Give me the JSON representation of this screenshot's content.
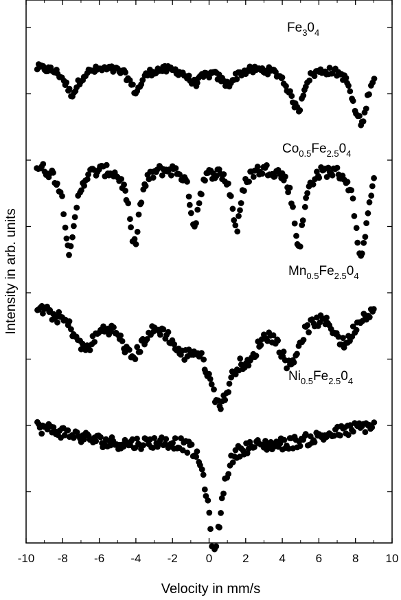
{
  "chart_data": {
    "type": "scatter",
    "xlabel": "Velocity in mm/s",
    "ylabel": "Intensity in arb. units",
    "xlim": [
      -10,
      10
    ],
    "x_ticks": [
      "-10",
      "-8",
      "-6",
      "-4",
      "-2",
      "0",
      "2",
      "4",
      "6",
      "8",
      "10"
    ],
    "y_tick_labels_shown": false,
    "marker_color": "#000000",
    "series": [
      {
        "label_parts": [
          [
            "Fe",
            ""
          ],
          [
            "3",
            "sub"
          ],
          [
            "0",
            ""
          ],
          [
            "4",
            "sub"
          ]
        ],
        "envelope": {
          "baseline": 0.92,
          "lines": [
            {
              "center": -7.5,
              "depth": 0.5,
              "width": 0.45
            },
            {
              "center": -4.0,
              "depth": 0.45,
              "width": 0.4
            },
            {
              "center": -0.8,
              "depth": 0.28,
              "width": 0.5
            },
            {
              "center": 1.0,
              "depth": 0.3,
              "width": 0.5
            },
            {
              "center": 4.5,
              "depth": 0.35,
              "width": 0.45
            },
            {
              "center": 4.9,
              "depth": 0.6,
              "width": 0.3
            },
            {
              "center": 8.0,
              "depth": 0.55,
              "width": 0.35
            },
            {
              "center": 8.4,
              "depth": 0.8,
              "width": 0.3
            }
          ]
        }
      },
      {
        "label_parts": [
          [
            "Co",
            ""
          ],
          [
            "0.5",
            "sub"
          ],
          [
            "Fe",
            ""
          ],
          [
            "2.5",
            "sub"
          ],
          [
            "0",
            ""
          ],
          [
            "4",
            "sub"
          ]
        ],
        "envelope": {
          "baseline": 0.95,
          "lines": [
            {
              "center": -7.6,
              "depth": 1.05,
              "width": 0.35
            },
            {
              "center": -4.1,
              "depth": 0.95,
              "width": 0.35
            },
            {
              "center": -0.8,
              "depth": 0.7,
              "width": 0.3
            },
            {
              "center": 1.5,
              "depth": 0.75,
              "width": 0.3
            },
            {
              "center": 4.9,
              "depth": 0.95,
              "width": 0.35
            },
            {
              "center": 8.3,
              "depth": 1.15,
              "width": 0.35
            }
          ]
        }
      },
      {
        "label_parts": [
          [
            "Mn",
            ""
          ],
          [
            "0.5",
            "sub"
          ],
          [
            "Fe",
            ""
          ],
          [
            "2.5",
            "sub"
          ],
          [
            "0",
            ""
          ],
          [
            "4",
            "sub"
          ]
        ],
        "envelope": {
          "baseline": 0.85,
          "lines": [
            {
              "center": -8.5,
              "depth": 0.05,
              "width": 0.5
            },
            {
              "center": -6.8,
              "depth": 0.5,
              "width": 0.8
            },
            {
              "center": -4.2,
              "depth": 0.55,
              "width": 0.8
            },
            {
              "center": -1.5,
              "depth": 0.4,
              "width": 0.8
            },
            {
              "center": 0.6,
              "depth": 1.1,
              "width": 0.9
            },
            {
              "center": 2.2,
              "depth": 0.4,
              "width": 0.6
            },
            {
              "center": 4.4,
              "depth": 0.65,
              "width": 0.7
            },
            {
              "center": 7.4,
              "depth": 0.45,
              "width": 0.7
            }
          ]
        }
      },
      {
        "label_parts": [
          [
            "Ni",
            ""
          ],
          [
            "0.5",
            "sub"
          ],
          [
            "Fe",
            ""
          ],
          [
            "2.5",
            "sub"
          ],
          [
            "0",
            ""
          ],
          [
            "4",
            "sub"
          ]
        ],
        "envelope": {
          "baseline": 0.85,
          "lines": [
            {
              "center": -5.0,
              "depth": 0.3,
              "width": 4.5
            },
            {
              "center": 4.0,
              "depth": 0.3,
              "width": 4.5
            },
            {
              "center": 0.3,
              "depth": 1.3,
              "width": 0.45
            }
          ]
        }
      }
    ]
  }
}
